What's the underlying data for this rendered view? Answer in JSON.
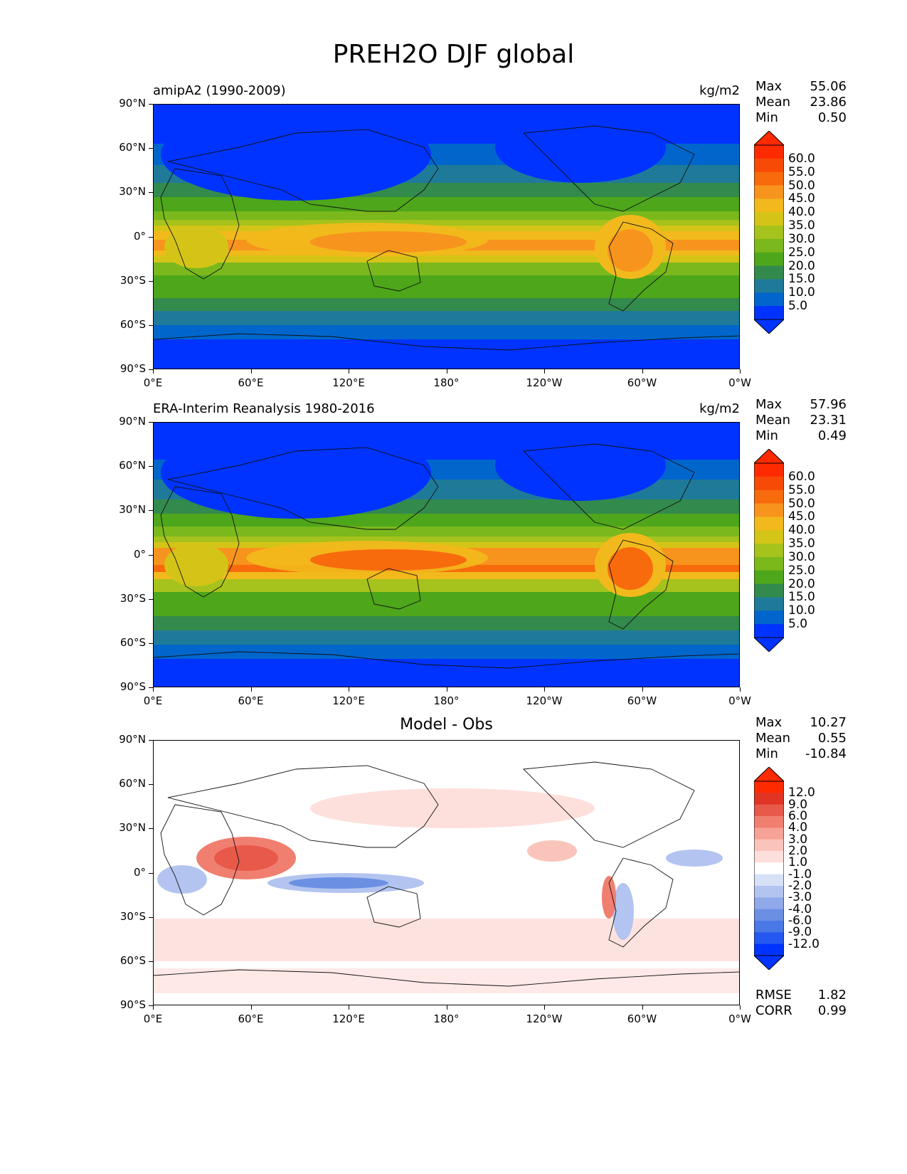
{
  "figure": {
    "title": "PREH2O DJF global"
  },
  "axes": {
    "lat_labels": [
      "90°N",
      "60°N",
      "30°N",
      "0°",
      "30°S",
      "60°S",
      "90°S"
    ],
    "lon_labels": [
      "0°E",
      "60°E",
      "120°E",
      "180°",
      "120°W",
      "60°W",
      "0°W"
    ]
  },
  "panels": [
    {
      "title": "amipA2 (1990-2009)",
      "units": "kg/m2",
      "stats": {
        "max_label": "Max",
        "max": "55.06",
        "mean_label": "Mean",
        "mean": "23.86",
        "min_label": "Min",
        "min": "0.50"
      },
      "colorbar_labels": [
        "60.0",
        "55.0",
        "50.0",
        "45.0",
        "40.0",
        "35.0",
        "30.0",
        "25.0",
        "20.0",
        "15.0",
        "10.0",
        "5.0"
      ]
    },
    {
      "title": "ERA-Interim Reanalysis 1980-2016",
      "units": "kg/m2",
      "stats": {
        "max_label": "Max",
        "max": "57.96",
        "mean_label": "Mean",
        "mean": "23.31",
        "min_label": "Min",
        "min": "0.49"
      },
      "colorbar_labels": [
        "60.0",
        "55.0",
        "50.0",
        "45.0",
        "40.0",
        "35.0",
        "30.0",
        "25.0",
        "20.0",
        "15.0",
        "10.0",
        "5.0"
      ]
    },
    {
      "title": "Model - Obs",
      "units": "",
      "stats": {
        "max_label": "Max",
        "max": "10.27",
        "mean_label": "Mean",
        "mean": "0.55",
        "min_label": "Min",
        "min": "-10.84"
      },
      "colorbar_labels": [
        "12.0",
        "9.0",
        "6.0",
        "4.0",
        "3.0",
        "2.0",
        "1.0",
        "-1.0",
        "-2.0",
        "-3.0",
        "-4.0",
        "-6.0",
        "-9.0",
        "-12.0"
      ],
      "footer": {
        "rmse_label": "RMSE",
        "rmse": "1.82",
        "corr_label": "CORR",
        "corr": "0.99"
      }
    }
  ],
  "colors": {
    "field_scale": [
      "#0033ff",
      "#0066cc",
      "#1f7a99",
      "#338a4d",
      "#4ea61a",
      "#7ab81c",
      "#a6c21c",
      "#d4c417",
      "#f2b91c",
      "#f7941d",
      "#f76b0d",
      "#f74a07",
      "#ff2a00"
    ],
    "diff_scale": [
      "#0033ff",
      "#2458f0",
      "#4a78e6",
      "#6b90e3",
      "#8fa9ea",
      "#b3c4f0",
      "#d6e1f7",
      "#ffffff",
      "#fde0dc",
      "#fbc4bb",
      "#f7a296",
      "#f07f70",
      "#e8594a",
      "#e03524",
      "#ff2a00"
    ]
  }
}
